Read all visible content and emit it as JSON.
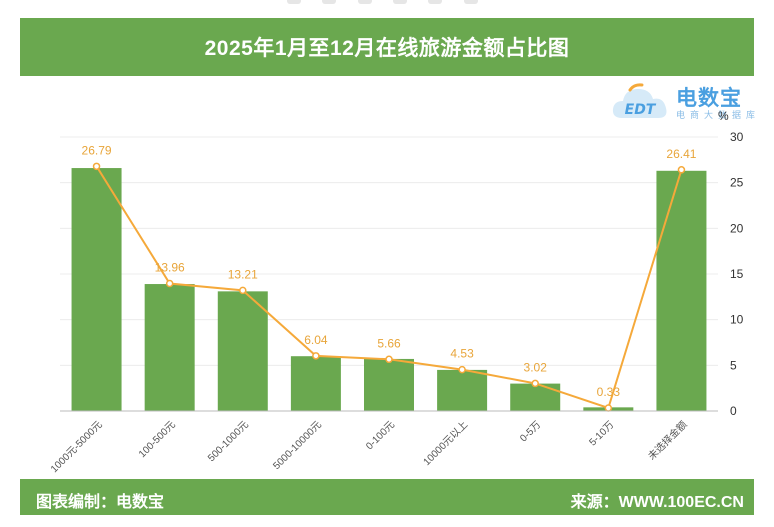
{
  "header": {
    "title": "2025年1月至12月在线旅游金额占比图"
  },
  "logo": {
    "name": "电数宝",
    "subtitle": "电商大数据库",
    "mark_text": "EDT"
  },
  "footer": {
    "left": "图表编制：电数宝",
    "right": "来源：WWW.100EC.CN"
  },
  "chart_data": {
    "type": "bar",
    "categories": [
      "1000元-5000元",
      "100-500元",
      "500-1000元",
      "5000-10000元",
      "0-100元",
      "10000元以上",
      "0-5万",
      "5-10万",
      "未选择金额"
    ],
    "series": [
      {
        "type": "bar",
        "values": [
          26.6,
          13.9,
          13.1,
          6.0,
          5.7,
          4.5,
          3.0,
          0.4,
          26.3
        ]
      },
      {
        "type": "line",
        "values": [
          26.79,
          13.96,
          13.21,
          6.04,
          5.66,
          4.53,
          3.02,
          0.33,
          26.41
        ]
      }
    ],
    "data_labels": [
      "26.79",
      "13.96",
      "13.21",
      "6.04",
      "5.66",
      "4.53",
      "3.02",
      "0.33",
      "26.41"
    ],
    "y_ticks": [
      "0",
      "5",
      "10",
      "15",
      "20",
      "25",
      "30"
    ],
    "ylabel": "%",
    "ylim": [
      0,
      30
    ],
    "y_axis_side": "right",
    "grid": true,
    "colors": {
      "bar": "#6aa84f",
      "line": "#f5a93a",
      "label": "#e8a53a"
    }
  }
}
